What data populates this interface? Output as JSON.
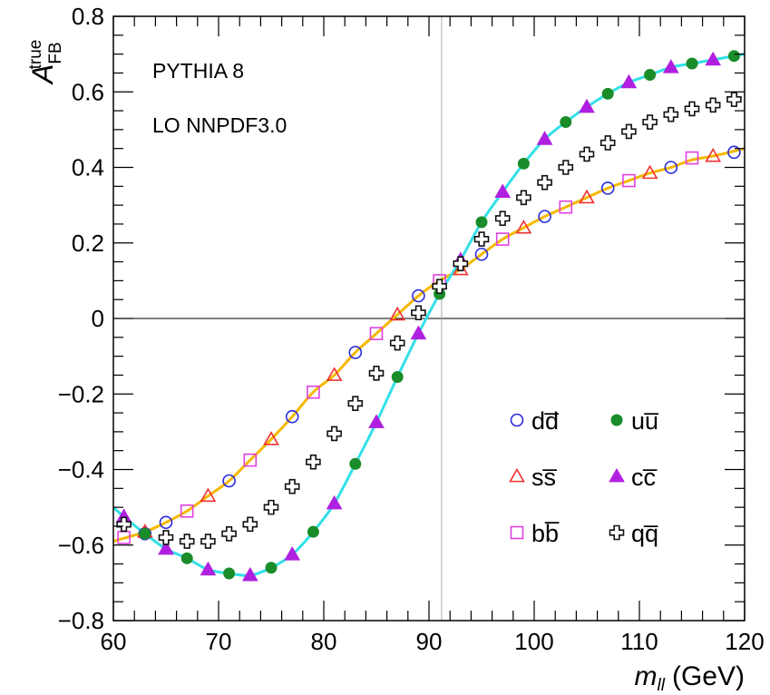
{
  "chart_data": {
    "type": "scatter",
    "title": "",
    "annotations": [
      "PYTHIA 8",
      "LO NNPDF3.0"
    ],
    "xlabel": {
      "var": "m",
      "sub": "ll",
      "unit": "(GeV)"
    },
    "ylabel": {
      "var": "A",
      "sup": "true",
      "sub": "FB"
    },
    "xlim": [
      60,
      120
    ],
    "ylim": [
      -0.8,
      0.8
    ],
    "x_ticks": [
      60,
      70,
      80,
      90,
      100,
      110,
      120
    ],
    "y_ticks": [
      -0.8,
      -0.6,
      -0.4,
      -0.2,
      0,
      0.2,
      0.4,
      0.6,
      0.8
    ],
    "y_tick_labels": [
      "−0.8",
      "−0.6",
      "−0.4",
      "−0.2",
      "0",
      "0.2",
      "0.4",
      "0.6",
      "0.8"
    ],
    "reference_lines": {
      "horizontal_y": 0,
      "vertical_x": 91.2
    },
    "legend_placement": "bottom-right",
    "series": [
      {
        "name": "d",
        "label": "dd̅",
        "marker": "open-circle",
        "color": "#2a2ae0",
        "x": [
          63,
          65,
          71,
          77,
          83,
          89,
          95,
          101,
          107,
          113,
          119
        ],
        "y": [
          -0.57,
          -0.54,
          -0.43,
          -0.26,
          -0.09,
          0.06,
          0.17,
          0.27,
          0.345,
          0.4,
          0.44
        ]
      },
      {
        "name": "s",
        "label": "ss̅",
        "marker": "open-triangle",
        "color": "#f03030",
        "x": [
          63,
          69,
          75,
          81,
          87,
          93,
          99,
          105,
          111,
          117
        ],
        "y": [
          -0.565,
          -0.47,
          -0.32,
          -0.15,
          0.01,
          0.13,
          0.24,
          0.32,
          0.385,
          0.43
        ]
      },
      {
        "name": "b",
        "label": "bb̅",
        "marker": "open-square",
        "color": "#e040e0",
        "x": [
          61,
          67,
          73,
          79,
          85,
          91,
          97,
          103,
          109,
          115
        ],
        "y": [
          -0.58,
          -0.51,
          -0.375,
          -0.195,
          -0.04,
          0.1,
          0.21,
          0.295,
          0.365,
          0.425
        ]
      },
      {
        "name": "u",
        "label": "uu̅",
        "marker": "filled-circle",
        "color": "#1a8c2a",
        "x": [
          63,
          67,
          71,
          75,
          79,
          83,
          87,
          91,
          95,
          99,
          103,
          107,
          111,
          115,
          119
        ],
        "y": [
          -0.57,
          -0.635,
          -0.675,
          -0.66,
          -0.565,
          -0.385,
          -0.155,
          0.065,
          0.255,
          0.41,
          0.52,
          0.595,
          0.645,
          0.675,
          0.695
        ]
      },
      {
        "name": "c",
        "label": "cc̅",
        "marker": "filled-triangle",
        "color": "#b020e0",
        "x": [
          61,
          65,
          69,
          73,
          77,
          81,
          85,
          89,
          93,
          97,
          101,
          105,
          109,
          113,
          117
        ],
        "y": [
          -0.525,
          -0.61,
          -0.665,
          -0.68,
          -0.625,
          -0.49,
          -0.275,
          -0.04,
          0.155,
          0.335,
          0.475,
          0.56,
          0.625,
          0.665,
          0.685
        ]
      },
      {
        "name": "q",
        "label": "qq̅",
        "marker": "open-cross",
        "color": "#111111",
        "x": [
          61,
          65,
          67,
          69,
          71,
          73,
          75,
          77,
          79,
          81,
          83,
          85,
          87,
          89,
          91,
          93,
          95,
          97,
          99,
          101,
          103,
          105,
          107,
          109,
          111,
          113,
          115,
          117,
          119
        ],
        "y": [
          -0.545,
          -0.58,
          -0.59,
          -0.59,
          -0.57,
          -0.545,
          -0.5,
          -0.445,
          -0.38,
          -0.305,
          -0.225,
          -0.145,
          -0.065,
          0.015,
          0.085,
          0.145,
          0.21,
          0.265,
          0.32,
          0.36,
          0.4,
          0.435,
          0.465,
          0.495,
          0.52,
          0.54,
          0.555,
          0.565,
          0.58
        ]
      }
    ],
    "curves": [
      {
        "name": "fit-down-type",
        "color": "#f5b800",
        "x": [
          60,
          63,
          65,
          67,
          69,
          71,
          73,
          75,
          77,
          79,
          81,
          83,
          85,
          87,
          89,
          91,
          93,
          95,
          97,
          99,
          101,
          103,
          105,
          107,
          109,
          111,
          113,
          115,
          117,
          120
        ],
        "y": [
          -0.59,
          -0.565,
          -0.54,
          -0.51,
          -0.47,
          -0.43,
          -0.375,
          -0.32,
          -0.26,
          -0.195,
          -0.15,
          -0.09,
          -0.04,
          0.01,
          0.06,
          0.1,
          0.13,
          0.17,
          0.21,
          0.24,
          0.27,
          0.295,
          0.32,
          0.345,
          0.365,
          0.385,
          0.4,
          0.42,
          0.43,
          0.45
        ]
      },
      {
        "name": "fit-up-type",
        "color": "#33e0e8",
        "x": [
          60,
          61,
          63,
          65,
          67,
          69,
          71,
          73,
          75,
          77,
          79,
          81,
          83,
          85,
          87,
          89,
          91,
          93,
          95,
          97,
          99,
          101,
          103,
          105,
          107,
          109,
          111,
          113,
          115,
          117,
          120
        ],
        "y": [
          -0.5,
          -0.525,
          -0.57,
          -0.61,
          -0.635,
          -0.665,
          -0.675,
          -0.68,
          -0.66,
          -0.625,
          -0.565,
          -0.49,
          -0.385,
          -0.275,
          -0.155,
          -0.04,
          0.065,
          0.155,
          0.255,
          0.335,
          0.41,
          0.475,
          0.52,
          0.56,
          0.595,
          0.625,
          0.645,
          0.665,
          0.675,
          0.685,
          0.7
        ]
      }
    ]
  }
}
